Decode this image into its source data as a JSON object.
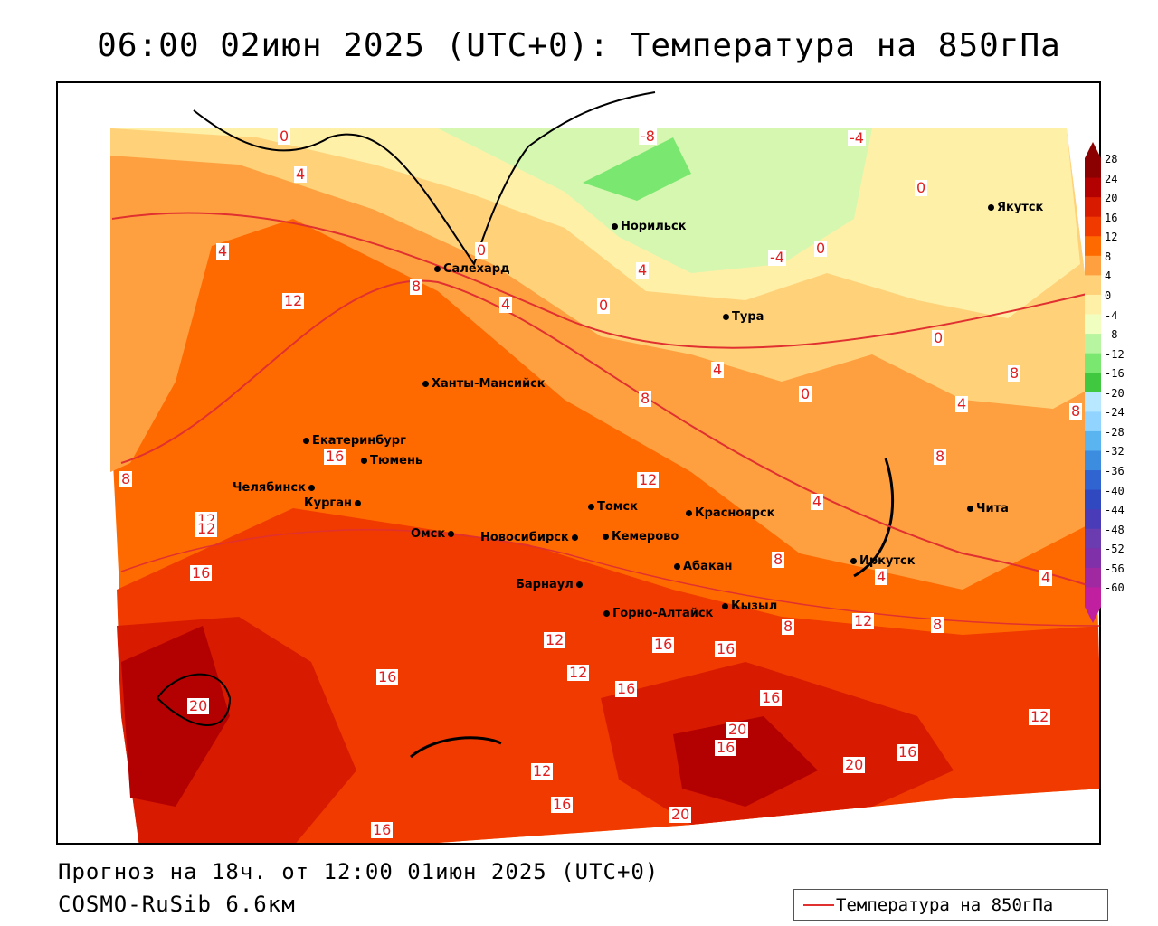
{
  "title": "06:00 02июн 2025 (UTC+0): Температура на 850гПа",
  "footer": {
    "forecast": "Прогноз на 18ч. от 12:00 01июн 2025 (UTC+0)",
    "model": "COSMO-RuSib 6.6км"
  },
  "legend": {
    "label": "Температура на 850гПа",
    "line_color": "#e03030"
  },
  "colorbar": {
    "labels": [
      "28",
      "24",
      "20",
      "16",
      "12",
      "8",
      "4",
      "0",
      "-4",
      "-8",
      "-12",
      "-16",
      "-20",
      "-24",
      "-28",
      "-32",
      "-36",
      "-40",
      "-44",
      "-48",
      "-52",
      "-56",
      "-60"
    ],
    "colors": [
      "#8b0000",
      "#b30000",
      "#d81a00",
      "#f03a00",
      "#ff6a00",
      "#ffa040",
      "#ffd27a",
      "#fff0a8",
      "#f0ffc0",
      "#b8f5a0",
      "#7ae870",
      "#40c840",
      "#b8e8ff",
      "#90d4ff",
      "#5ab4f0",
      "#3c8ce0",
      "#3064d0",
      "#3048c0",
      "#4a3cb8",
      "#6a3cb0",
      "#8030a8",
      "#a028a0",
      "#c020a0"
    ]
  },
  "cities": [
    {
      "name": "Норильск"
    },
    {
      "name": "Якутск"
    },
    {
      "name": "Салехард"
    },
    {
      "name": "Тура"
    },
    {
      "name": "Ханты-Мансийск"
    },
    {
      "name": "Екатеринбург"
    },
    {
      "name": "Тюмень"
    },
    {
      "name": "Челябинск"
    },
    {
      "name": "Курган"
    },
    {
      "name": "Омск"
    },
    {
      "name": "Новосибирск"
    },
    {
      "name": "Томск"
    },
    {
      "name": "Кемерово"
    },
    {
      "name": "Красноярск"
    },
    {
      "name": "Барнаул"
    },
    {
      "name": "Абакан"
    },
    {
      "name": "Горно-Алтайск"
    },
    {
      "name": "Кызыл"
    },
    {
      "name": "Иркутск"
    },
    {
      "name": "Чита"
    }
  ],
  "contour_labels": [
    "0",
    "4",
    "-8",
    "-4",
    "0",
    "4",
    "0",
    "0",
    "-4",
    "0",
    "4",
    "8",
    "4",
    "0",
    "12",
    "4",
    "8",
    "8",
    "4",
    "8",
    "8",
    "0",
    "16",
    "12",
    "8",
    "12",
    "4",
    "16",
    "16",
    "12",
    "12",
    "16",
    "16",
    "16",
    "12",
    "20",
    "16",
    "20",
    "12",
    "16",
    "20",
    "16",
    "20",
    "16",
    "8",
    "4",
    "8",
    "4",
    "8",
    "12",
    "12",
    "16"
  ]
}
